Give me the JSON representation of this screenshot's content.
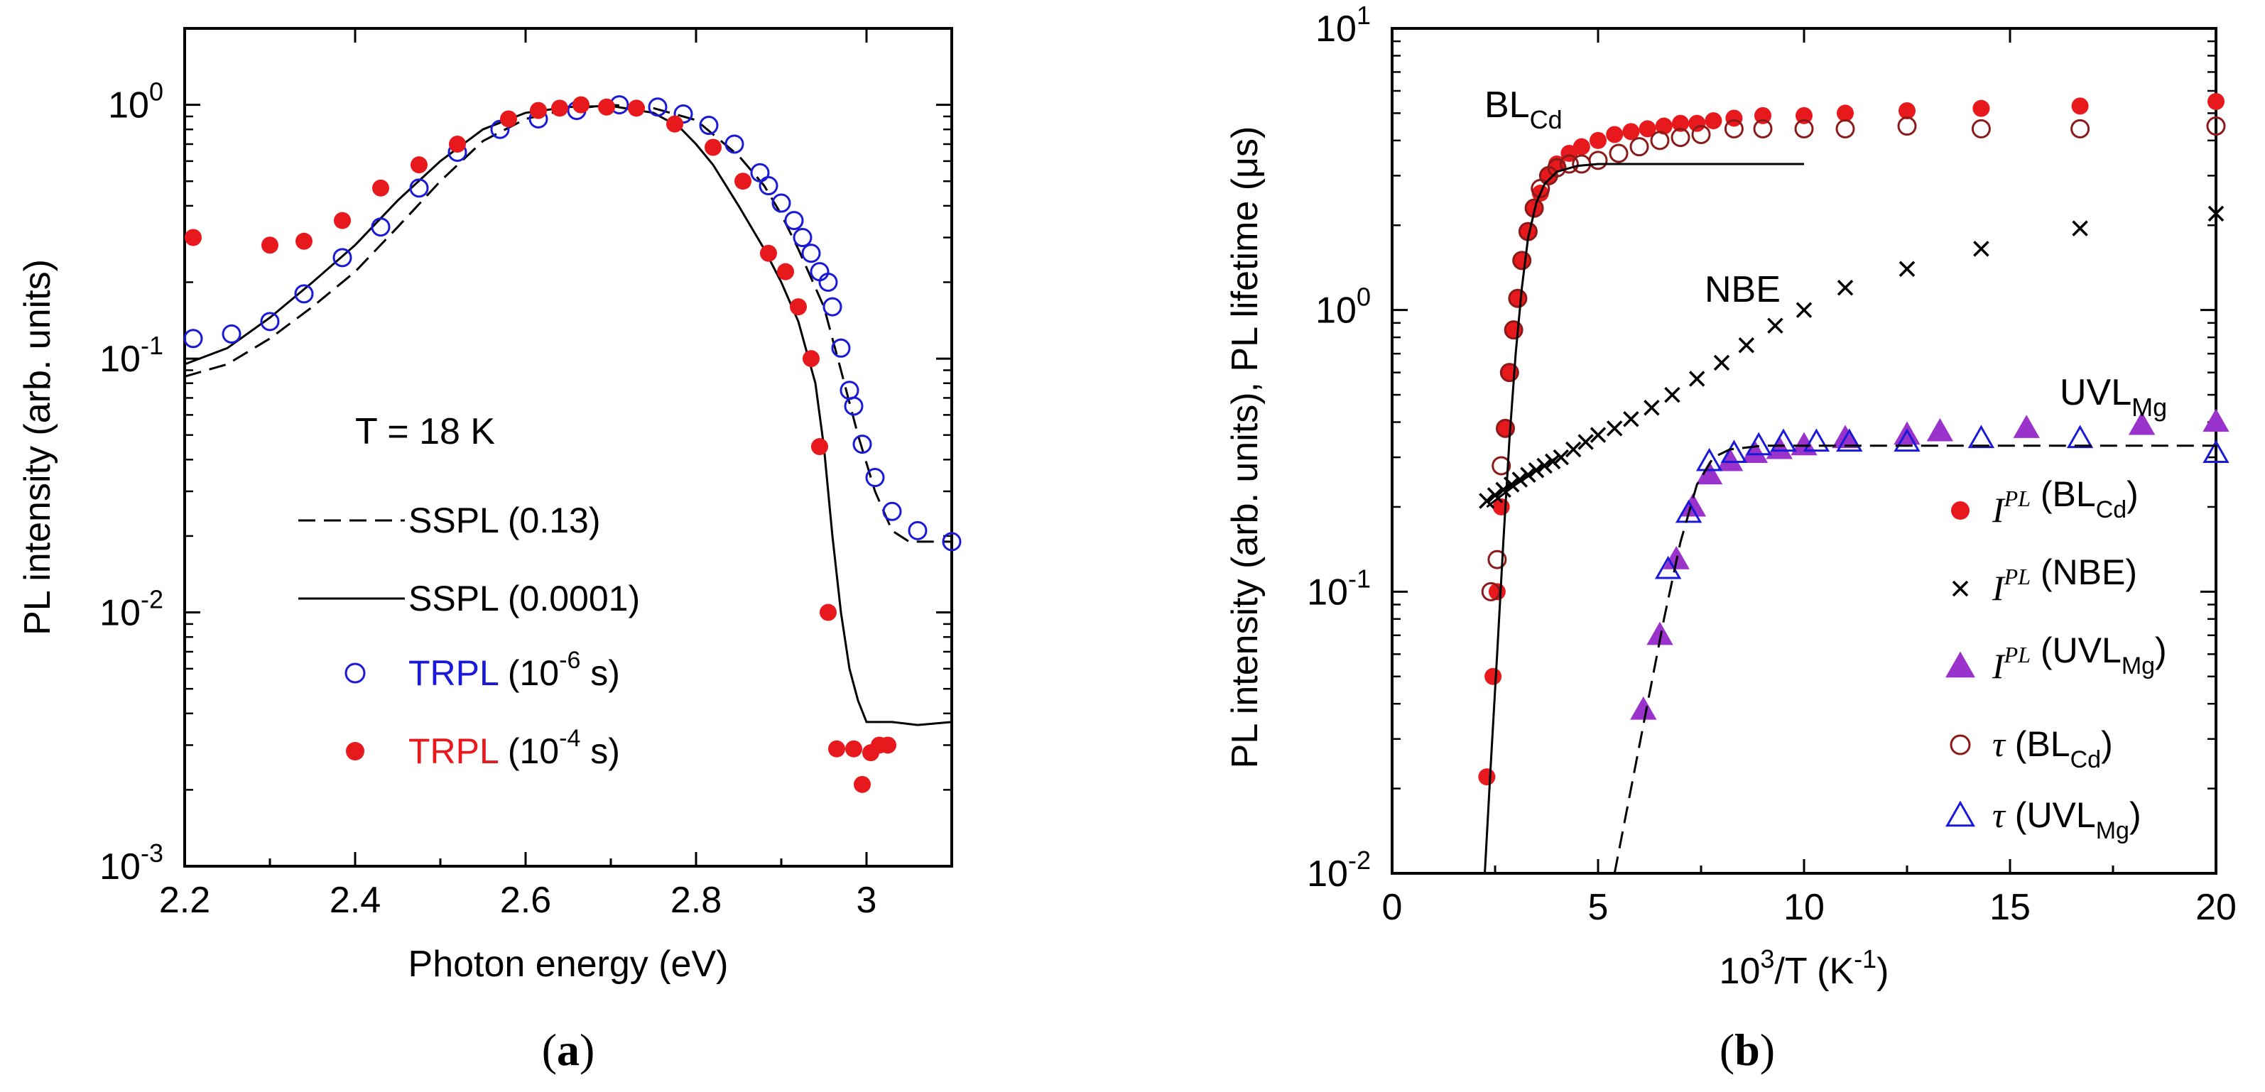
{
  "chart_data": [
    {
      "type": "line",
      "panel_label": "a",
      "xlabel": "Photon energy (eV)",
      "ylabel": "PL intensity (arb. units)",
      "xlim": [
        2.2,
        3.1
      ],
      "ylim": [
        0.001,
        2
      ],
      "yscale": "log",
      "x_ticks": [
        2.2,
        2.4,
        2.6,
        2.8,
        3.0
      ],
      "x_tick_labels": [
        "2.2",
        "2.4",
        "2.6",
        "2.8",
        "3"
      ],
      "y_ticks": [
        0.001,
        0.01,
        0.1,
        1
      ],
      "y_tick_labels": [
        {
          "base": "10",
          "exp": "-3"
        },
        {
          "base": "10",
          "exp": "-2"
        },
        {
          "base": "10",
          "exp": "-1"
        },
        {
          "base": "10",
          "exp": "0"
        }
      ],
      "annotation": "T = 18 K",
      "legend": [
        {
          "series": "sspl_013",
          "text": "SSPL (0.13)",
          "color": "#000000"
        },
        {
          "series": "sspl_00001",
          "text": "SSPL (0.0001)",
          "color": "#000000"
        },
        {
          "series": "trpl_1e6",
          "text_colored": "TRPL",
          "text_base": " (10",
          "text_exp": "-6",
          "text_end": " s)",
          "color": "#1a1ad6"
        },
        {
          "series": "trpl_1e4",
          "text_colored": "TRPL",
          "text_base": " (10",
          "text_exp": "-4",
          "text_end": " s)",
          "color": "#e8191c"
        }
      ],
      "series": [
        {
          "id": "sspl_013",
          "name": "SSPL (0.13)",
          "style": "dashed",
          "color": "#000000",
          "x": [
            2.2,
            2.25,
            2.3,
            2.35,
            2.4,
            2.45,
            2.5,
            2.55,
            2.6,
            2.65,
            2.7,
            2.75,
            2.8,
            2.85,
            2.88,
            2.9,
            2.92,
            2.95,
            2.97,
            2.99,
            3.01,
            3.03,
            3.05,
            3.1
          ],
          "y": [
            0.085,
            0.095,
            0.12,
            0.16,
            0.22,
            0.33,
            0.5,
            0.72,
            0.88,
            0.96,
            1.0,
            0.97,
            0.87,
            0.63,
            0.48,
            0.37,
            0.27,
            0.16,
            0.09,
            0.05,
            0.03,
            0.021,
            0.019,
            0.019
          ]
        },
        {
          "id": "sspl_00001",
          "name": "SSPL (0.0001)",
          "style": "solid",
          "color": "#000000",
          "x": [
            2.2,
            2.25,
            2.3,
            2.35,
            2.4,
            2.45,
            2.5,
            2.55,
            2.6,
            2.65,
            2.7,
            2.75,
            2.78,
            2.8,
            2.82,
            2.85,
            2.88,
            2.9,
            2.92,
            2.94,
            2.95,
            2.96,
            2.97,
            2.98,
            2.99,
            3.0,
            3.03,
            3.06,
            3.1
          ],
          "y": [
            0.095,
            0.11,
            0.145,
            0.2,
            0.28,
            0.42,
            0.6,
            0.8,
            0.93,
            0.98,
            0.99,
            0.93,
            0.82,
            0.7,
            0.58,
            0.4,
            0.27,
            0.2,
            0.14,
            0.08,
            0.045,
            0.02,
            0.01,
            0.006,
            0.0045,
            0.0037,
            0.0037,
            0.0036,
            0.0037
          ]
        },
        {
          "id": "trpl_1e6",
          "name": "TRPL (1e-6 s)",
          "style": "open-circle",
          "color": "#1a1ad6",
          "x": [
            2.21,
            2.255,
            2.3,
            2.34,
            2.385,
            2.43,
            2.475,
            2.52,
            2.57,
            2.615,
            2.66,
            2.71,
            2.755,
            2.785,
            2.815,
            2.845,
            2.875,
            2.885,
            2.9,
            2.915,
            2.925,
            2.935,
            2.945,
            2.955,
            2.96,
            2.97,
            2.98,
            2.985,
            2.995,
            3.01,
            3.03,
            3.06,
            3.1
          ],
          "y": [
            0.12,
            0.125,
            0.14,
            0.18,
            0.25,
            0.33,
            0.47,
            0.65,
            0.8,
            0.88,
            0.95,
            1.0,
            0.98,
            0.92,
            0.83,
            0.7,
            0.54,
            0.48,
            0.41,
            0.35,
            0.3,
            0.26,
            0.22,
            0.2,
            0.16,
            0.11,
            0.075,
            0.065,
            0.046,
            0.034,
            0.025,
            0.021,
            0.019
          ]
        },
        {
          "id": "trpl_1e4",
          "name": "TRPL (1e-4 s)",
          "style": "filled-circle",
          "color": "#e8191c",
          "x": [
            2.21,
            2.3,
            2.34,
            2.385,
            2.43,
            2.475,
            2.52,
            2.58,
            2.615,
            2.64,
            2.665,
            2.695,
            2.73,
            2.775,
            2.82,
            2.855,
            2.885,
            2.905,
            2.92,
            2.935,
            2.945,
            2.955,
            2.965,
            2.985,
            2.995,
            3.005,
            3.015,
            3.025
          ],
          "y": [
            0.3,
            0.28,
            0.29,
            0.35,
            0.47,
            0.58,
            0.7,
            0.88,
            0.95,
            0.97,
            1.0,
            0.98,
            0.97,
            0.84,
            0.68,
            0.5,
            0.26,
            0.22,
            0.16,
            0.1,
            0.045,
            0.01,
            0.0029,
            0.0029,
            0.0021,
            0.0028,
            0.003,
            0.003
          ]
        }
      ]
    },
    {
      "type": "scatter",
      "panel_label": "b",
      "xlabel_base": "10",
      "xlabel_exp": "3",
      "xlabel_mid": "/T (K",
      "xlabel_exp2": "-1",
      "xlabel_end": ")",
      "ylabel": "PL intensity (arb. units), PL lifetime (μs)",
      "xlim": [
        0,
        20
      ],
      "ylim": [
        0.01,
        10
      ],
      "yscale": "log",
      "x_ticks": [
        0,
        5,
        10,
        15,
        20
      ],
      "x_tick_labels": [
        "0",
        "5",
        "10",
        "15",
        "20"
      ],
      "y_ticks": [
        0.01,
        0.1,
        1,
        10
      ],
      "y_tick_labels": [
        {
          "base": "10",
          "exp": "-2"
        },
        {
          "base": "10",
          "exp": "-1"
        },
        {
          "base": "10",
          "exp": "0"
        },
        {
          "base": "10",
          "exp": "1"
        }
      ],
      "annotations": [
        {
          "base": "BL",
          "sub": "Cd"
        },
        {
          "base": "NBE",
          "sub": ""
        },
        {
          "base": "UVL",
          "sub": "Mg"
        }
      ],
      "legend": [
        {
          "series": "ipl_blcd",
          "sym": "I",
          "sup": "PL",
          "text": " (BL",
          "sub": "Cd",
          "end": ")"
        },
        {
          "series": "ipl_nbe",
          "sym": "I",
          "sup": "PL",
          "text": " (NBE)",
          "sub": "",
          "end": ""
        },
        {
          "series": "ipl_uvl",
          "sym": "I",
          "sup": "PL",
          "text": " (UVL",
          "sub": "Mg",
          "end": ")"
        },
        {
          "series": "tau_blcd",
          "sym": "τ",
          "sup": "",
          "text": " (BL",
          "sub": "Cd",
          "end": ")"
        },
        {
          "series": "tau_uvl",
          "sym": "τ",
          "sup": "",
          "text": " (UVL",
          "sub": "Mg",
          "end": ")"
        }
      ],
      "series": [
        {
          "id": "ipl_blcd",
          "name": "I_PL (BL_Cd)",
          "marker": "filled-circle",
          "color": "#e8191c",
          "x": [
            2.3,
            2.45,
            2.55,
            2.65,
            2.75,
            2.85,
            2.95,
            3.05,
            3.15,
            3.3,
            3.45,
            3.6,
            3.8,
            4.0,
            4.3,
            4.6,
            5.0,
            5.4,
            5.8,
            6.2,
            6.6,
            7.0,
            7.4,
            7.8,
            8.3,
            9.0,
            10.0,
            11.0,
            12.5,
            14.3,
            16.7,
            20.0
          ],
          "y": [
            0.022,
            0.05,
            0.1,
            0.2,
            0.38,
            0.6,
            0.85,
            1.1,
            1.5,
            1.9,
            2.3,
            2.6,
            3.0,
            3.3,
            3.6,
            3.8,
            4.0,
            4.2,
            4.3,
            4.4,
            4.5,
            4.6,
            4.6,
            4.7,
            4.8,
            4.9,
            4.9,
            5.0,
            5.1,
            5.2,
            5.3,
            5.5
          ]
        },
        {
          "id": "ipl_nbe",
          "name": "I_PL (NBE)",
          "marker": "cross",
          "color": "#000000",
          "x": [
            2.3,
            2.5,
            2.7,
            2.9,
            3.1,
            3.3,
            3.5,
            3.7,
            3.9,
            4.1,
            4.4,
            4.7,
            5.0,
            5.4,
            5.8,
            6.3,
            6.8,
            7.4,
            8.0,
            8.6,
            9.3,
            10.0,
            11.0,
            12.5,
            14.3,
            16.7,
            20.0
          ],
          "y": [
            0.21,
            0.22,
            0.23,
            0.24,
            0.25,
            0.26,
            0.27,
            0.28,
            0.29,
            0.3,
            0.32,
            0.34,
            0.36,
            0.38,
            0.41,
            0.45,
            0.5,
            0.57,
            0.65,
            0.75,
            0.88,
            1.0,
            1.2,
            1.4,
            1.65,
            1.95,
            2.2
          ]
        },
        {
          "id": "ipl_uvl",
          "name": "I_PL (UVL_Mg)",
          "marker": "filled-triangle",
          "color": "#9933cc",
          "x": [
            6.1,
            6.5,
            6.9,
            7.3,
            7.7,
            8.2,
            8.8,
            9.4,
            10.0,
            11.0,
            12.5,
            13.3,
            15.4,
            18.2,
            20.0
          ],
          "y": [
            0.038,
            0.07,
            0.13,
            0.2,
            0.26,
            0.29,
            0.31,
            0.32,
            0.33,
            0.35,
            0.36,
            0.37,
            0.38,
            0.39,
            0.4
          ]
        },
        {
          "id": "tau_blcd",
          "name": "tau (BL_Cd)",
          "marker": "open-circle",
          "color": "#8b1a1a",
          "x": [
            2.4,
            2.55,
            2.65,
            2.75,
            2.85,
            2.95,
            3.05,
            3.15,
            3.3,
            3.45,
            3.6,
            3.8,
            4.0,
            4.3,
            4.6,
            5.0,
            5.5,
            6.0,
            6.5,
            7.0,
            7.5,
            8.3,
            9.0,
            10.0,
            11.0,
            12.5,
            14.3,
            16.7,
            20.0
          ],
          "y": [
            0.1,
            0.13,
            0.28,
            0.38,
            0.6,
            0.85,
            1.1,
            1.5,
            1.9,
            2.3,
            2.7,
            3.0,
            3.2,
            3.3,
            3.3,
            3.4,
            3.6,
            3.8,
            4.0,
            4.1,
            4.2,
            4.4,
            4.4,
            4.4,
            4.4,
            4.5,
            4.4,
            4.4,
            4.5
          ]
        },
        {
          "id": "tau_uvl",
          "name": "tau (UVL_Mg)",
          "marker": "open-triangle",
          "color": "#1a1ad6",
          "x": [
            6.7,
            7.2,
            7.7,
            8.3,
            8.9,
            9.5,
            10.3,
            11.1,
            12.5,
            14.3,
            16.7,
            20.0
          ],
          "y": [
            0.12,
            0.19,
            0.29,
            0.31,
            0.33,
            0.34,
            0.34,
            0.34,
            0.34,
            0.35,
            0.35,
            0.31
          ]
        },
        {
          "id": "fit_blcd",
          "name": "fit BL_Cd",
          "style": "solid",
          "color": "#000000",
          "x": [
            2.25,
            2.4,
            2.55,
            2.7,
            2.85,
            3.0,
            3.15,
            3.3,
            3.5,
            3.7,
            4.0,
            4.5,
            5.0,
            6.0,
            7.0,
            8.0,
            10.0
          ],
          "y": [
            0.01,
            0.025,
            0.06,
            0.15,
            0.35,
            0.7,
            1.2,
            1.8,
            2.4,
            2.8,
            3.1,
            3.25,
            3.3,
            3.3,
            3.3,
            3.3,
            3.3
          ]
        },
        {
          "id": "fit_nbe",
          "name": "fit NBE",
          "style": "solid",
          "color": "#000000",
          "x": [
            2.3,
            3.0,
            4.0
          ],
          "y": [
            0.2,
            0.24,
            0.3
          ]
        },
        {
          "id": "fit_uvl",
          "name": "fit UVL_Mg",
          "style": "dashed",
          "color": "#000000",
          "x": [
            5.4,
            5.8,
            6.2,
            6.6,
            7.0,
            7.4,
            7.8,
            8.2,
            9.0,
            10.0,
            12.0,
            15.0,
            20.0
          ],
          "y": [
            0.01,
            0.02,
            0.04,
            0.08,
            0.15,
            0.24,
            0.3,
            0.32,
            0.33,
            0.33,
            0.33,
            0.33,
            0.33
          ]
        }
      ]
    }
  ]
}
